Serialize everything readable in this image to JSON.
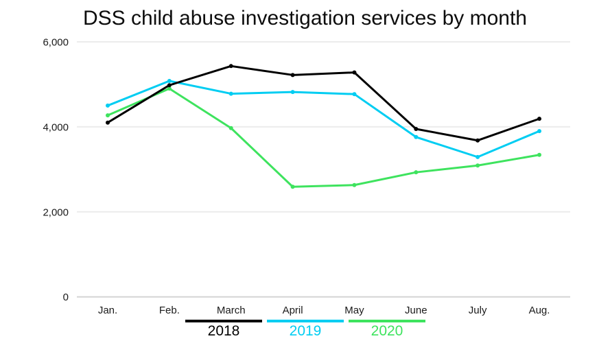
{
  "title": "DSS child abuse investigation services by month",
  "colors": {
    "background": "#ffffff",
    "gridline": "#ececec",
    "zero_gridline": "#d4d4d4",
    "axis_text": "#1a1a1a",
    "title_text": "#0d0d0d"
  },
  "chart_data": {
    "type": "line",
    "title": "DSS child abuse investigation services by month",
    "categories": [
      "Jan.",
      "Feb.",
      "March",
      "April",
      "May",
      "June",
      "July",
      "Aug."
    ],
    "series": [
      {
        "name": "2018",
        "color": "#000000",
        "values": [
          4100,
          4980,
          5430,
          5220,
          5280,
          3950,
          3680,
          4190
        ]
      },
      {
        "name": "2019",
        "color": "#00cdf2",
        "values": [
          4500,
          5080,
          4780,
          4820,
          4770,
          3760,
          3290,
          3900
        ]
      },
      {
        "name": "2020",
        "color": "#3ee35e",
        "values": [
          4270,
          4900,
          3970,
          2590,
          2630,
          2930,
          3090,
          3340
        ]
      }
    ],
    "xlabel": "",
    "ylabel": "",
    "ylim": [
      0,
      6000
    ],
    "yticks": [
      {
        "value": 0,
        "label": "0"
      },
      {
        "value": 2000,
        "label": "2,000"
      },
      {
        "value": 4000,
        "label": "4,000"
      },
      {
        "value": 6000,
        "label": "6,000"
      }
    ],
    "grid": "horizontal",
    "legend_position": "bottom",
    "markers": true
  }
}
